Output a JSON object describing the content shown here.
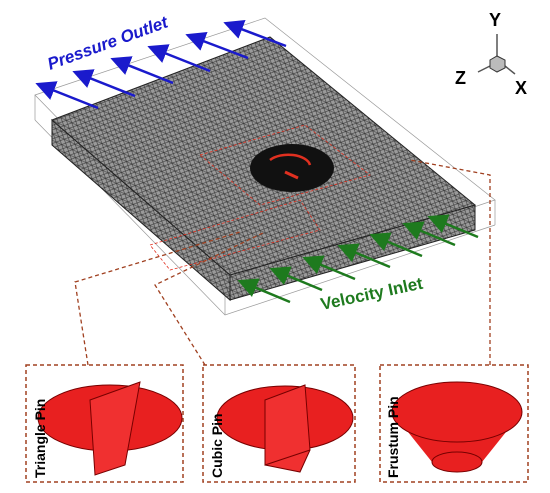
{
  "axes": {
    "y": "Y",
    "z": "Z",
    "x": "X"
  },
  "labels": {
    "outlet": "Pressure Outlet",
    "inlet": "Velocity Inlet"
  },
  "pins": [
    {
      "label": "Triangle Pin"
    },
    {
      "label": "Cubic Pin"
    },
    {
      "label": "Frustum Pin"
    }
  ]
}
